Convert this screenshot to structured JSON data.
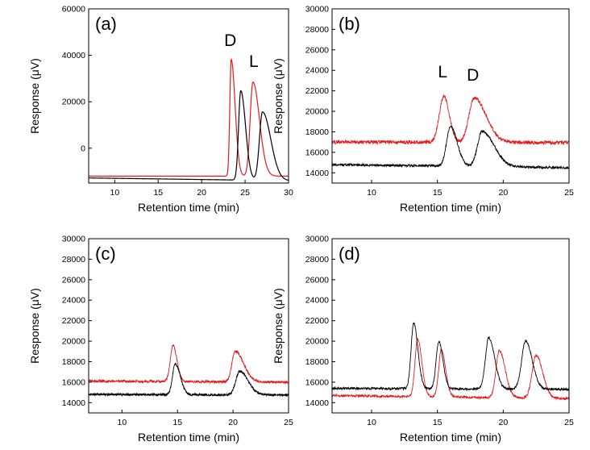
{
  "chart_data": [
    {
      "type": "line",
      "panel_label": "(a)",
      "xlabel": "Retention time (min)",
      "ylabel": "Response (μV)",
      "xlim": [
        7,
        30
      ],
      "ylim": [
        -15000,
        60000
      ],
      "xticks": [
        10,
        15,
        20,
        25,
        30
      ],
      "yticks": [
        0,
        20000,
        40000,
        60000
      ],
      "grid": false,
      "annotations": [
        {
          "text": "D",
          "x": 23.3,
          "y": 44000
        },
        {
          "text": "L",
          "x": 26.0,
          "y": 35000
        }
      ],
      "series": [
        {
          "color": "#e41a1c",
          "noise": 0,
          "baseline_start": -12000,
          "baseline_end": -12000,
          "peaks": [
            {
              "center": 23.4,
              "height": 50300,
              "width_left": 0.16,
              "width_right": 0.45
            },
            {
              "center": 25.9,
              "height": 40500,
              "width_left": 0.32,
              "width_right": 0.75
            }
          ]
        },
        {
          "color": "#000000",
          "noise": 0,
          "baseline_start": -12800,
          "baseline_end": -14000,
          "peaks": [
            {
              "center": 24.5,
              "height": 38500,
              "width_left": 0.25,
              "width_right": 0.55
            },
            {
              "center": 27.0,
              "height": 29500,
              "width_left": 0.35,
              "width_right": 0.95
            }
          ]
        }
      ]
    },
    {
      "type": "line",
      "panel_label": "(b)",
      "xlabel": "Retention time (min)",
      "ylabel": "Response (μV)",
      "xlim": [
        7,
        25
      ],
      "ylim": [
        13000,
        30000
      ],
      "xticks": [
        10,
        15,
        20,
        25
      ],
      "yticks": [
        14000,
        16000,
        18000,
        20000,
        22000,
        24000,
        26000,
        28000,
        30000
      ],
      "grid": false,
      "annotations": [
        {
          "text": "L",
          "x": 15.4,
          "y": 23300
        },
        {
          "text": "D",
          "x": 17.7,
          "y": 23000
        }
      ],
      "series": [
        {
          "color": "#e41a1c",
          "noise": 180,
          "baseline_start": 17000,
          "baseline_end": 16950,
          "peaks": [
            {
              "center": 15.5,
              "height": 4500,
              "width_left": 0.35,
              "width_right": 0.4
            },
            {
              "center": 17.8,
              "height": 4350,
              "width_left": 0.4,
              "width_right": 0.9
            }
          ]
        },
        {
          "color": "#000000",
          "noise": 120,
          "baseline_start": 14800,
          "baseline_end": 14500,
          "peaks": [
            {
              "center": 16.0,
              "height": 3900,
              "width_left": 0.3,
              "width_right": 0.5
            },
            {
              "center": 18.4,
              "height": 3450,
              "width_left": 0.35,
              "width_right": 0.9
            }
          ]
        }
      ]
    },
    {
      "type": "line",
      "panel_label": "(c)",
      "xlabel": "Retention time (min)",
      "ylabel": "Response (μV)",
      "xlim": [
        7,
        25
      ],
      "ylim": [
        13000,
        30000
      ],
      "xticks": [
        10,
        15,
        20,
        25
      ],
      "yticks": [
        14000,
        16000,
        18000,
        20000,
        22000,
        24000,
        26000,
        28000,
        30000
      ],
      "grid": false,
      "annotations": [],
      "series": [
        {
          "color": "#e41a1c",
          "noise": 120,
          "baseline_start": 16100,
          "baseline_end": 16000,
          "peaks": [
            {
              "center": 14.6,
              "height": 3500,
              "width_left": 0.25,
              "width_right": 0.35
            },
            {
              "center": 20.2,
              "height": 3000,
              "width_left": 0.3,
              "width_right": 0.75
            }
          ]
        },
        {
          "color": "#000000",
          "noise": 110,
          "baseline_start": 14800,
          "baseline_end": 14750,
          "peaks": [
            {
              "center": 14.8,
              "height": 3000,
              "width_left": 0.25,
              "width_right": 0.45
            },
            {
              "center": 20.6,
              "height": 2300,
              "width_left": 0.35,
              "width_right": 0.75
            }
          ]
        }
      ]
    },
    {
      "type": "line",
      "panel_label": "(d)",
      "xlabel": "Retention time (min)",
      "ylabel": "Response (μV)",
      "xlim": [
        7,
        25
      ],
      "ylim": [
        13000,
        30000
      ],
      "xticks": [
        10,
        15,
        20,
        25
      ],
      "yticks": [
        14000,
        16000,
        18000,
        20000,
        22000,
        24000,
        26000,
        28000,
        30000
      ],
      "grid": false,
      "annotations": [],
      "series": [
        {
          "color": "#e41a1c",
          "noise": 110,
          "baseline_start": 14700,
          "baseline_end": 14400,
          "peaks": [
            {
              "center": 13.5,
              "height": 5600,
              "width_left": 0.2,
              "width_right": 0.32
            },
            {
              "center": 15.3,
              "height": 4600,
              "width_left": 0.2,
              "width_right": 0.32
            },
            {
              "center": 19.7,
              "height": 4600,
              "width_left": 0.25,
              "width_right": 0.45
            },
            {
              "center": 22.5,
              "height": 4200,
              "width_left": 0.3,
              "width_right": 0.5
            }
          ]
        },
        {
          "color": "#000000",
          "noise": 110,
          "baseline_start": 15400,
          "baseline_end": 15300,
          "peaks": [
            {
              "center": 13.2,
              "height": 6400,
              "width_left": 0.2,
              "width_right": 0.32
            },
            {
              "center": 15.1,
              "height": 4600,
              "width_left": 0.2,
              "width_right": 0.32
            },
            {
              "center": 18.9,
              "height": 5000,
              "width_left": 0.25,
              "width_right": 0.45
            },
            {
              "center": 21.7,
              "height": 4700,
              "width_left": 0.3,
              "width_right": 0.5
            }
          ]
        }
      ]
    }
  ]
}
